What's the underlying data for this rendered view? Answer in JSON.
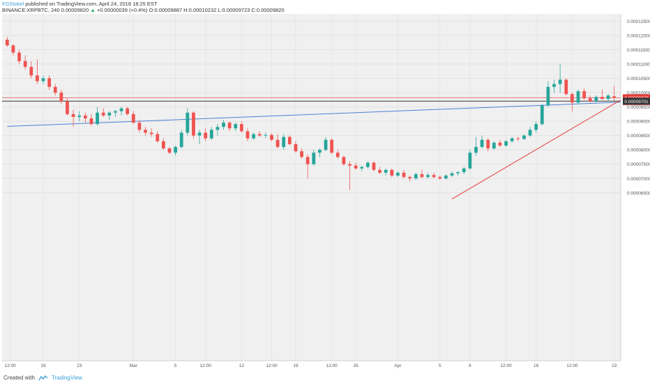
{
  "header": {
    "author": "FGStokel",
    "published": "published on TradingView.com, April 24, 2018 18:25 EST",
    "symbol": "BINANCE:XRPBTC, 240",
    "price": "0.00009820",
    "arrow": "▲",
    "change": "+0.00000039 (+0.4%)",
    "o_label": "O:",
    "o_val": "0.00009887",
    "h_label": "H:",
    "h_val": "0.00010232",
    "l_label": "L:",
    "l_val": "0.00009723",
    "c_label": "C:",
    "c_val": "0.00009820"
  },
  "footer": {
    "created_with": "Created with",
    "brand": "TradingView"
  },
  "colors": {
    "up": "#26a69a",
    "down": "#ef5350",
    "plot_bg": "#f0f0f0",
    "trend_blue": "#4a7fd4",
    "trend_red": "#e53935",
    "h_red": "#e57373",
    "h_dark": "#333333"
  },
  "chart_data": {
    "type": "candlestick",
    "symbol": "BINANCE:XRPBTC",
    "interval": "240",
    "ylim": [
      6.3e-06,
      0.0001275
    ],
    "y_ticks": [
      "0.00006500",
      "0.00007000",
      "0.00007500",
      "0.00008000",
      "0.00008500",
      "0.00009000",
      "0.00009500",
      "0.00010000",
      "0.00010500",
      "0.00011000",
      "0.00011500",
      "0.00012000",
      "0.00012500"
    ],
    "y_tick_values": [
      6.5e-05,
      7e-05,
      7.5e-05,
      8e-05,
      8.5e-05,
      9e-05,
      9.5e-05,
      0.0001,
      0.000105,
      0.00011,
      0.000115,
      0.00012,
      0.000125
    ],
    "x_ticks": [
      "12:00",
      "19",
      "23",
      "Mar",
      "5",
      "12:00",
      "12",
      "12:00",
      "19",
      "12:00",
      "26",
      "Apr",
      "5",
      "9",
      "12:00",
      "16",
      "12:00",
      "23"
    ],
    "x_tick_positions": [
      0.5,
      6,
      12,
      21,
      28,
      33,
      39,
      44,
      48,
      54,
      58,
      65,
      72,
      77,
      83,
      88,
      94,
      101
    ],
    "price_labels": [
      {
        "text": "0.00009820",
        "value": 9.82e-05,
        "color": "#e53935"
      },
      {
        "text": "34:05",
        "value": 9.68e-05,
        "color": "#e57373"
      },
      {
        "text": "0.00009701",
        "value": 9.701e-05,
        "color": "#333333"
      }
    ],
    "horizontal_lines": [
      {
        "value": 9.82e-05,
        "color": "red"
      },
      {
        "value": 9.701e-05,
        "color": "dark"
      }
    ],
    "trendlines": [
      {
        "name": "support",
        "color": "blue",
        "x0": 0,
        "y0": 8.82e-05,
        "x1": 104,
        "y1": 9.68e-05
      },
      {
        "name": "uptrend",
        "color": "red",
        "x0": 74,
        "y0": 6.28e-05,
        "x1": 104,
        "y1": 9.98e-05
      }
    ],
    "candles": [
      {
        "o": 0.0001185,
        "h": 0.0001195,
        "l": 0.000116,
        "c": 0.0001165
      },
      {
        "o": 0.0001165,
        "h": 0.000117,
        "l": 0.000113,
        "c": 0.000114
      },
      {
        "o": 0.000114,
        "h": 0.000115,
        "l": 0.00011,
        "c": 0.000111
      },
      {
        "o": 0.000111,
        "h": 0.000113,
        "l": 0.000108,
        "c": 0.000109
      },
      {
        "o": 0.000109,
        "h": 0.000111,
        "l": 0.000105,
        "c": 0.000106
      },
      {
        "o": 0.000106,
        "h": 0.0001115,
        "l": 0.000103,
        "c": 0.000104
      },
      {
        "o": 0.000104,
        "h": 0.000106,
        "l": 0.000103,
        "c": 0.000105
      },
      {
        "o": 0.000105,
        "h": 0.000106,
        "l": 0.000101,
        "c": 0.000102
      },
      {
        "o": 0.000102,
        "h": 0.000103,
        "l": 9.9e-05,
        "c": 0.0001
      },
      {
        "o": 0.0001,
        "h": 0.000101,
        "l": 9.6e-05,
        "c": 9.7e-05
      },
      {
        "o": 9.7e-05,
        "h": 9.8e-05,
        "l": 9.2e-05,
        "c": 9.25e-05
      },
      {
        "o": 9.25e-05,
        "h": 9.4e-05,
        "l": 8.8e-05,
        "c": 9.15e-05
      },
      {
        "o": 9.15e-05,
        "h": 9.35e-05,
        "l": 9e-05,
        "c": 9.2e-05
      },
      {
        "o": 9.2e-05,
        "h": 9.3e-05,
        "l": 8.95e-05,
        "c": 9.1e-05
      },
      {
        "o": 9.1e-05,
        "h": 9.25e-05,
        "l": 8.85e-05,
        "c": 8.9e-05
      },
      {
        "o": 8.9e-05,
        "h": 9.5e-05,
        "l": 8.85e-05,
        "c": 9.3e-05
      },
      {
        "o": 9.3e-05,
        "h": 9.45e-05,
        "l": 9.15e-05,
        "c": 9.2e-05
      },
      {
        "o": 9.2e-05,
        "h": 9.35e-05,
        "l": 9.05e-05,
        "c": 9.3e-05
      },
      {
        "o": 9.3e-05,
        "h": 9.4e-05,
        "l": 9.15e-05,
        "c": 9.35e-05
      },
      {
        "o": 9.35e-05,
        "h": 9.5e-05,
        "l": 9.2e-05,
        "c": 9.45e-05
      },
      {
        "o": 9.45e-05,
        "h": 9.5e-05,
        "l": 9.2e-05,
        "c": 9.25e-05
      },
      {
        "o": 9.25e-05,
        "h": 9.35e-05,
        "l": 8.9e-05,
        "c": 8.95e-05
      },
      {
        "o": 8.95e-05,
        "h": 9.05e-05,
        "l": 8.6e-05,
        "c": 8.7e-05
      },
      {
        "o": 8.7e-05,
        "h": 8.8e-05,
        "l": 8.5e-05,
        "c": 8.6e-05
      },
      {
        "o": 8.6e-05,
        "h": 8.75e-05,
        "l": 8.45e-05,
        "c": 8.55e-05
      },
      {
        "o": 8.55e-05,
        "h": 8.65e-05,
        "l": 8.25e-05,
        "c": 8.3e-05
      },
      {
        "o": 8.3e-05,
        "h": 8.4e-05,
        "l": 8e-05,
        "c": 8.05e-05
      },
      {
        "o": 8.05e-05,
        "h": 8.1e-05,
        "l": 7.85e-05,
        "c": 7.9e-05
      },
      {
        "o": 7.9e-05,
        "h": 8.15e-05,
        "l": 7.8e-05,
        "c": 8.1e-05
      },
      {
        "o": 8.1e-05,
        "h": 8.7e-05,
        "l": 8.05e-05,
        "c": 8.6e-05
      },
      {
        "o": 8.6e-05,
        "h": 9.45e-05,
        "l": 8.5e-05,
        "c": 9.3e-05
      },
      {
        "o": 9.3e-05,
        "h": 9.35e-05,
        "l": 8.4e-05,
        "c": 8.5e-05
      },
      {
        "o": 8.5e-05,
        "h": 8.7e-05,
        "l": 8.2e-05,
        "c": 8.6e-05
      },
      {
        "o": 8.6e-05,
        "h": 8.75e-05,
        "l": 8.3e-05,
        "c": 8.4e-05
      },
      {
        "o": 8.4e-05,
        "h": 8.8e-05,
        "l": 8.35e-05,
        "c": 8.7e-05
      },
      {
        "o": 8.7e-05,
        "h": 8.9e-05,
        "l": 8.5e-05,
        "c": 8.8e-05
      },
      {
        "o": 8.8e-05,
        "h": 9.05e-05,
        "l": 8.7e-05,
        "c": 8.95e-05
      },
      {
        "o": 8.95e-05,
        "h": 9e-05,
        "l": 8.65e-05,
        "c": 8.75e-05
      },
      {
        "o": 8.75e-05,
        "h": 8.95e-05,
        "l": 8.65e-05,
        "c": 8.9e-05
      },
      {
        "o": 8.9e-05,
        "h": 9e-05,
        "l": 8.6e-05,
        "c": 8.65e-05
      },
      {
        "o": 8.65e-05,
        "h": 8.75e-05,
        "l": 8.3e-05,
        "c": 8.4e-05
      },
      {
        "o": 8.4e-05,
        "h": 8.6e-05,
        "l": 8.35e-05,
        "c": 8.55e-05
      },
      {
        "o": 8.55e-05,
        "h": 8.65e-05,
        "l": 8.45e-05,
        "c": 8.5e-05
      },
      {
        "o": 8.5e-05,
        "h": 8.6e-05,
        "l": 8.4e-05,
        "c": 8.52e-05
      },
      {
        "o": 8.52e-05,
        "h": 8.58e-05,
        "l": 8.3e-05,
        "c": 8.35e-05
      },
      {
        "o": 8.35e-05,
        "h": 8.55e-05,
        "l": 8.05e-05,
        "c": 8.1e-05
      },
      {
        "o": 8.1e-05,
        "h": 8.55e-05,
        "l": 8e-05,
        "c": 8.45e-05
      },
      {
        "o": 8.45e-05,
        "h": 8.5e-05,
        "l": 8.15e-05,
        "c": 8.2e-05
      },
      {
        "o": 8.2e-05,
        "h": 8.3e-05,
        "l": 7.9e-05,
        "c": 7.95e-05
      },
      {
        "o": 7.95e-05,
        "h": 8.05e-05,
        "l": 7.7e-05,
        "c": 7.75e-05
      },
      {
        "o": 7.75e-05,
        "h": 7.85e-05,
        "l": 7e-05,
        "c": 7.5e-05
      },
      {
        "o": 7.5e-05,
        "h": 8e-05,
        "l": 7.45e-05,
        "c": 7.9e-05
      },
      {
        "o": 7.9e-05,
        "h": 8.05e-05,
        "l": 7.75e-05,
        "c": 8e-05
      },
      {
        "o": 8e-05,
        "h": 8.45e-05,
        "l": 7.95e-05,
        "c": 8.35e-05
      },
      {
        "o": 8.35e-05,
        "h": 8.4e-05,
        "l": 7.85e-05,
        "c": 7.9e-05
      },
      {
        "o": 7.9e-05,
        "h": 8e-05,
        "l": 7.7e-05,
        "c": 7.75e-05
      },
      {
        "o": 7.75e-05,
        "h": 7.8e-05,
        "l": 7.45e-05,
        "c": 7.5e-05
      },
      {
        "o": 7.5e-05,
        "h": 7.6e-05,
        "l": 6.6e-05,
        "c": 7.45e-05
      },
      {
        "o": 7.45e-05,
        "h": 7.55e-05,
        "l": 7.3e-05,
        "c": 7.35e-05
      },
      {
        "o": 7.35e-05,
        "h": 7.45e-05,
        "l": 7.25e-05,
        "c": 7.4e-05
      },
      {
        "o": 7.4e-05,
        "h": 7.6e-05,
        "l": 7.35e-05,
        "c": 7.55e-05
      },
      {
        "o": 7.55e-05,
        "h": 7.6e-05,
        "l": 7.25e-05,
        "c": 7.3e-05
      },
      {
        "o": 7.3e-05,
        "h": 7.4e-05,
        "l": 7.15e-05,
        "c": 7.2e-05
      },
      {
        "o": 7.2e-05,
        "h": 7.35e-05,
        "l": 7.1e-05,
        "c": 7.3e-05
      },
      {
        "o": 7.3e-05,
        "h": 7.35e-05,
        "l": 7.05e-05,
        "c": 7.1e-05
      },
      {
        "o": 7.1e-05,
        "h": 7.25e-05,
        "l": 7.05e-05,
        "c": 7.2e-05
      },
      {
        "o": 7.2e-05,
        "h": 7.3e-05,
        "l": 7e-05,
        "c": 7.05e-05
      },
      {
        "o": 7.05e-05,
        "h": 7.1e-05,
        "l": 6.9e-05,
        "c": 7e-05
      },
      {
        "o": 7e-05,
        "h": 7.2e-05,
        "l": 6.95e-05,
        "c": 7.15e-05
      },
      {
        "o": 7.15e-05,
        "h": 7.3e-05,
        "l": 7e-05,
        "c": 7.05e-05
      },
      {
        "o": 7.05e-05,
        "h": 7.2e-05,
        "l": 7e-05,
        "c": 7.12e-05
      },
      {
        "o": 7.12e-05,
        "h": 7.2e-05,
        "l": 7e-05,
        "c": 7.05e-05
      },
      {
        "o": 7.05e-05,
        "h": 7.1e-05,
        "l": 6.95e-05,
        "c": 7e-05
      },
      {
        "o": 7e-05,
        "h": 7.15e-05,
        "l": 6.95e-05,
        "c": 7.1e-05
      },
      {
        "o": 7.1e-05,
        "h": 7.25e-05,
        "l": 7.05e-05,
        "c": 7.18e-05
      },
      {
        "o": 7.18e-05,
        "h": 7.25e-05,
        "l": 7.1e-05,
        "c": 7.22e-05
      },
      {
        "o": 7.22e-05,
        "h": 7.4e-05,
        "l": 7.15e-05,
        "c": 7.35e-05
      },
      {
        "o": 7.35e-05,
        "h": 8e-05,
        "l": 7.3e-05,
        "c": 7.9e-05
      },
      {
        "o": 7.9e-05,
        "h": 8.45e-05,
        "l": 7.8e-05,
        "c": 8.1e-05
      },
      {
        "o": 8.1e-05,
        "h": 8.5e-05,
        "l": 8.05e-05,
        "c": 8.35e-05
      },
      {
        "o": 8.35e-05,
        "h": 8.4e-05,
        "l": 7.95e-05,
        "c": 8.05e-05
      },
      {
        "o": 8.05e-05,
        "h": 8.3e-05,
        "l": 8e-05,
        "c": 8.25e-05
      },
      {
        "o": 8.25e-05,
        "h": 8.35e-05,
        "l": 8.1e-05,
        "c": 8.15e-05
      },
      {
        "o": 8.15e-05,
        "h": 8.35e-05,
        "l": 8.1e-05,
        "c": 8.3e-05
      },
      {
        "o": 8.3e-05,
        "h": 8.45e-05,
        "l": 8.25e-05,
        "c": 8.4e-05
      },
      {
        "o": 8.4e-05,
        "h": 8.45e-05,
        "l": 8.3e-05,
        "c": 8.38e-05
      },
      {
        "o": 8.38e-05,
        "h": 8.55e-05,
        "l": 8.35e-05,
        "c": 8.5e-05
      },
      {
        "o": 8.5e-05,
        "h": 8.8e-05,
        "l": 8.45e-05,
        "c": 8.7e-05
      },
      {
        "o": 8.7e-05,
        "h": 9e-05,
        "l": 8.6e-05,
        "c": 8.9e-05
      },
      {
        "o": 8.9e-05,
        "h": 9.6e-05,
        "l": 8.85e-05,
        "c": 9.55e-05
      },
      {
        "o": 9.55e-05,
        "h": 0.000104,
        "l": 9.5e-05,
        "c": 0.000102
      },
      {
        "o": 0.000102,
        "h": 0.0001045,
        "l": 0.0001,
        "c": 0.000103
      },
      {
        "o": 0.000103,
        "h": 0.00011,
        "l": 0.0001,
        "c": 0.0001045
      },
      {
        "o": 0.0001045,
        "h": 0.000105,
        "l": 9.9e-05,
        "c": 9.95e-05
      },
      {
        "o": 9.95e-05,
        "h": 0.0001,
        "l": 9.35e-05,
        "c": 9.65e-05
      },
      {
        "o": 9.65e-05,
        "h": 0.000101,
        "l": 9.6e-05,
        "c": 0.0001005
      },
      {
        "o": 0.0001005,
        "h": 0.0001015,
        "l": 9.75e-05,
        "c": 9.8e-05
      },
      {
        "o": 9.8e-05,
        "h": 9.9e-05,
        "l": 9.65e-05,
        "c": 9.7e-05
      },
      {
        "o": 9.7e-05,
        "h": 9.9e-05,
        "l": 9.65e-05,
        "c": 9.85e-05
      },
      {
        "o": 9.85e-05,
        "h": 0.000101,
        "l": 9.75e-05,
        "c": 9.78e-05
      },
      {
        "o": 9.78e-05,
        "h": 9.95e-05,
        "l": 9.7e-05,
        "c": 9.9e-05
      },
      {
        "o": 9.87e-05,
        "h": 0.0001023,
        "l": 9.72e-05,
        "c": 9.82e-05
      }
    ]
  }
}
